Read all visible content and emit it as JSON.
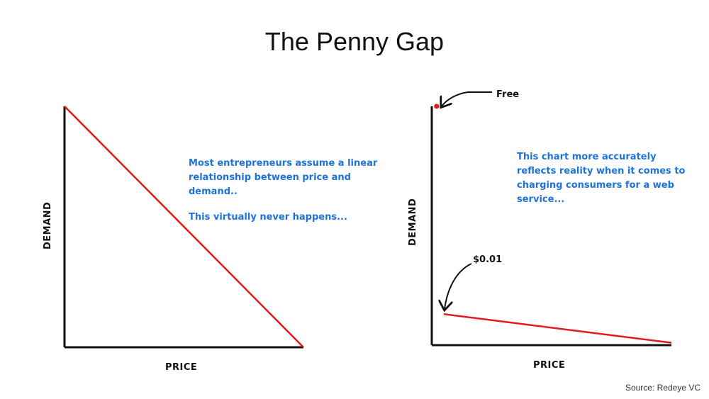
{
  "title": "The Penny Gap",
  "source": "Source: Redeye VC",
  "colors": {
    "line": "#e01b1b",
    "axis": "#111111",
    "note": "#1e73d8"
  },
  "chart_data": [
    {
      "type": "line",
      "xlabel": "PRICE",
      "ylabel": "DEMAND",
      "xlim": [
        0,
        1
      ],
      "ylim": [
        0,
        1
      ],
      "grid": false,
      "series": [
        {
          "x": [
            0,
            1
          ],
          "y": [
            1,
            0
          ]
        }
      ],
      "annotations": [
        "Most entrepreneurs assume a linear relationship between price and demand..",
        "This virtually never happens..."
      ]
    },
    {
      "type": "line",
      "xlabel": "PRICE",
      "ylabel": "DEMAND",
      "xlim": [
        0,
        1
      ],
      "ylim": [
        0,
        1
      ],
      "grid": false,
      "series": [
        {
          "x": [
            0.05,
            1
          ],
          "y": [
            0.13,
            0.01
          ]
        }
      ],
      "points": [
        {
          "x": 0.02,
          "y": 1.0,
          "label": "Free"
        }
      ],
      "callouts": [
        {
          "label": "Free"
        },
        {
          "label": "$0.01"
        }
      ],
      "annotations": [
        "This chart more accurately reflects reality when it comes to charging consumers for a web service..."
      ]
    }
  ]
}
